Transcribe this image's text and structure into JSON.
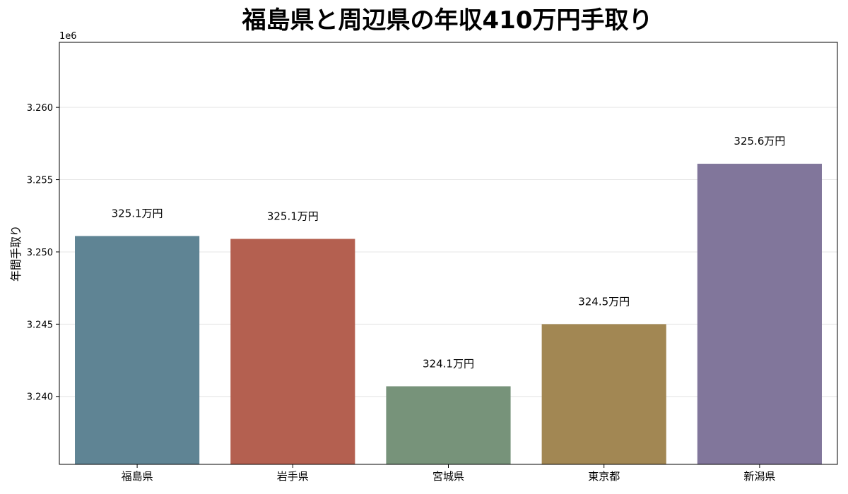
{
  "chart_data": {
    "type": "bar",
    "title": "福島県と周辺県の年収410万円手取り",
    "ylabel": "年間手取り",
    "xlabel": "",
    "y_offset_label": "1e6",
    "categories": [
      "福島県",
      "岩手県",
      "宮城県",
      "東京都",
      "新潟県"
    ],
    "values": [
      3.2511,
      3.2509,
      3.2407,
      3.245,
      3.2561
    ],
    "data_labels": [
      "325.1万円",
      "325.1万円",
      "324.1万円",
      "324.5万円",
      "325.6万円"
    ],
    "colors": [
      "#5f8494",
      "#b46050",
      "#77937a",
      "#a28753",
      "#81769b"
    ],
    "ylim": [
      3.2353,
      3.2645
    ],
    "yticks": [
      3.24,
      3.245,
      3.25,
      3.255,
      3.26
    ],
    "ytick_labels": [
      "3.240",
      "3.245",
      "3.250",
      "3.255",
      "3.260"
    ],
    "grid": "y"
  }
}
